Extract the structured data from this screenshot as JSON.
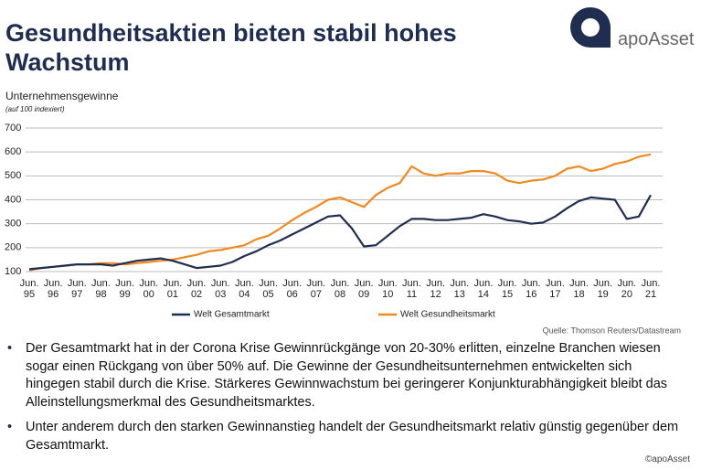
{
  "header": {
    "title": "Gesundheitsaktien bieten stabil hohes Wachstum",
    "logo": "apoAsset"
  },
  "chart_data": {
    "type": "line",
    "y_label": "Unternehmensgewinne",
    "subtitle": "(auf 100 indexiert)",
    "categories": [
      "Jun. 95",
      null,
      "Jun. 96",
      null,
      "Jun. 97",
      null,
      "Jun. 98",
      null,
      "Jun. 99",
      null,
      "Jun. 00",
      null,
      "Jun. 01",
      null,
      "Jun. 02",
      null,
      "Jun. 03",
      null,
      "Jun. 04",
      null,
      "Jun. 05",
      null,
      "Jun. 06",
      null,
      "Jun. 07",
      null,
      "Jun. 08",
      null,
      "Jun. 09",
      null,
      "Jun. 10",
      null,
      "Jun. 11",
      null,
      "Jun. 12",
      null,
      "Jun. 13",
      null,
      "Jun. 14",
      null,
      "Jun. 15",
      null,
      "Jun. 16",
      null,
      "Jun. 17",
      null,
      "Jun. 18",
      null,
      "Jun. 19",
      null,
      "Jun. 20",
      null,
      "Jun. 21"
    ],
    "series": [
      {
        "name": "Welt Gesamtmarkt",
        "color": "#1f2d50",
        "values": [
          110,
          115,
          120,
          125,
          130,
          130,
          130,
          125,
          135,
          145,
          150,
          155,
          145,
          130,
          115,
          120,
          125,
          140,
          165,
          185,
          210,
          230,
          255,
          280,
          305,
          330,
          335,
          280,
          205,
          210,
          250,
          290,
          320,
          320,
          315,
          315,
          320,
          325,
          340,
          330,
          315,
          310,
          300,
          305,
          330,
          365,
          395,
          410,
          405,
          400,
          320,
          330,
          420
        ]
      },
      {
        "name": "Welt Gesundheitsmarkt",
        "color": "#f0891e",
        "values": [
          105,
          115,
          120,
          125,
          130,
          130,
          135,
          135,
          130,
          135,
          140,
          145,
          150,
          160,
          170,
          185,
          190,
          200,
          210,
          235,
          250,
          280,
          315,
          345,
          370,
          400,
          410,
          390,
          370,
          420,
          450,
          470,
          540,
          510,
          500,
          510,
          510,
          520,
          520,
          510,
          480,
          470,
          480,
          485,
          500,
          530,
          540,
          520,
          530,
          550,
          560,
          580,
          590
        ]
      }
    ],
    "ylim": [
      100,
      700
    ],
    "yticks": [
      100,
      200,
      300,
      400,
      500,
      600,
      700
    ],
    "grid": true,
    "source": "Quelle: Thomson Reuters/Datastream"
  },
  "bullets": [
    "Der Gesamtmarkt hat in der Corona Krise Gewinnrückgänge von 20-30% erlitten, einzelne Branchen wiesen sogar einen Rückgang von über 50% auf. Die Gewinne der Gesundheitsunternehmen entwickelten sich hingegen stabil durch die Krise. Stärkeres Gewinnwachstum bei geringerer Konjunkturabhängigkeit bleibt das Alleinstellungsmerkmal des Gesundheitsmarktes.",
    "Unter anderem durch den starken Gewinnanstieg handelt der Gesundheitsmarkt relativ günstig gegenüber dem Gesamtmarkt."
  ],
  "footer": "©apoAsset"
}
